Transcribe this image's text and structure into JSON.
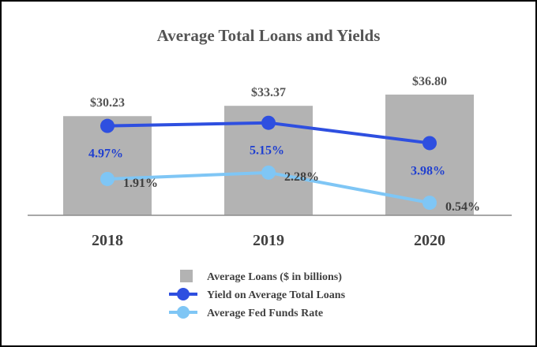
{
  "chart_data": {
    "type": "bar",
    "title": "Average Total Loans and Yields",
    "categories": [
      "2018",
      "2019",
      "2020"
    ],
    "series": [
      {
        "name": "Average Loans ($ in billions)",
        "kind": "bar",
        "values": [
          30.23,
          33.37,
          36.8
        ],
        "labels": [
          "$30.23",
          "$33.37",
          "$36.80"
        ],
        "color": "#b3b3b3"
      },
      {
        "name": "Yield on Average Total Loans",
        "kind": "line",
        "values": [
          4.97,
          5.15,
          3.98
        ],
        "labels": [
          "4.97%",
          "5.15%",
          "3.98%"
        ],
        "color": "#2e4fe0"
      },
      {
        "name": "Average Fed Funds Rate",
        "kind": "line",
        "values": [
          1.91,
          2.28,
          0.54
        ],
        "labels": [
          "1.91%",
          "2.28%",
          "0.54%"
        ],
        "color": "#7fc6f5"
      }
    ],
    "grid": false,
    "legend": "bottom"
  }
}
